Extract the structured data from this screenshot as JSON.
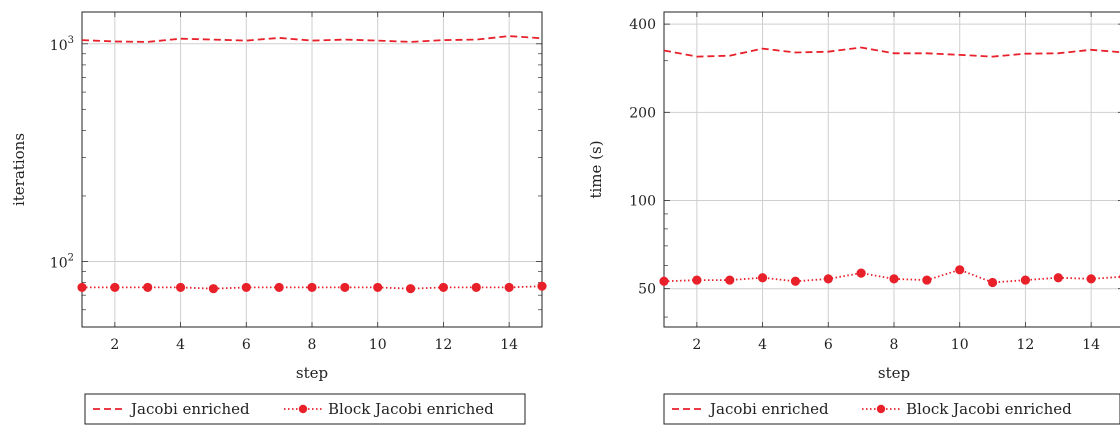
{
  "chart_data": [
    {
      "type": "line",
      "xlabel": "step",
      "ylabel": "iterations",
      "yscale": "log",
      "ylim": [
        50,
        1400
      ],
      "xlim": [
        1,
        15
      ],
      "grid": true,
      "x_ticks": [
        "2",
        "4",
        "6",
        "8",
        "10",
        "12",
        "14"
      ],
      "y_ticks": [
        {
          "value": 1000,
          "base": "10",
          "exp": "3"
        },
        {
          "value": 100,
          "base": "10",
          "exp": "2"
        }
      ],
      "x": [
        1,
        2,
        3,
        4,
        5,
        6,
        7,
        8,
        9,
        10,
        11,
        12,
        13,
        14,
        15
      ],
      "series": [
        {
          "name": "Jacobi enriched",
          "style": "dashed",
          "color": "#e8202a",
          "values": [
            1040,
            1025,
            1020,
            1055,
            1045,
            1035,
            1065,
            1035,
            1045,
            1035,
            1020,
            1040,
            1045,
            1085,
            1060
          ]
        },
        {
          "name": "Block Jacobi enriched",
          "style": "dotted-markers",
          "color": "#e8202a",
          "values": [
            76,
            76,
            76,
            76,
            75,
            76,
            76,
            76,
            76,
            76,
            75,
            76,
            76,
            76,
            77
          ]
        }
      ],
      "legend": {
        "position": "bottom",
        "entries": [
          "Jacobi enriched",
          "Block Jacobi enriched"
        ]
      }
    },
    {
      "type": "line",
      "xlabel": "step",
      "ylabel": "time (s)",
      "yscale": "log",
      "ylim": [
        37,
        440
      ],
      "xlim": [
        1,
        15
      ],
      "grid": true,
      "x_ticks": [
        "2",
        "4",
        "6",
        "8",
        "10",
        "12",
        "14"
      ],
      "y_ticks": [
        {
          "value": 400,
          "label": "400"
        },
        {
          "value": 200,
          "label": "200"
        },
        {
          "value": 100,
          "label": "100"
        },
        {
          "value": 50,
          "label": "50"
        }
      ],
      "x": [
        1,
        2,
        3,
        4,
        5,
        6,
        7,
        8,
        9,
        10,
        11,
        12,
        13,
        14,
        15
      ],
      "series": [
        {
          "name": "Jacobi enriched",
          "style": "dashed",
          "color": "#e8202a",
          "values": [
            325,
            310,
            312,
            330,
            320,
            322,
            333,
            318,
            318,
            314,
            310,
            317,
            318,
            327,
            320
          ]
        },
        {
          "name": "Block Jacobi enriched",
          "style": "dotted-markers",
          "color": "#e8202a",
          "values": [
            53,
            53.5,
            53.5,
            54.5,
            53,
            54,
            56.5,
            54,
            53.5,
            58,
            52.5,
            53.5,
            54.5,
            54,
            55
          ]
        }
      ],
      "legend": {
        "position": "bottom",
        "entries": [
          "Jacobi enriched",
          "Block Jacobi enriched"
        ]
      }
    }
  ]
}
